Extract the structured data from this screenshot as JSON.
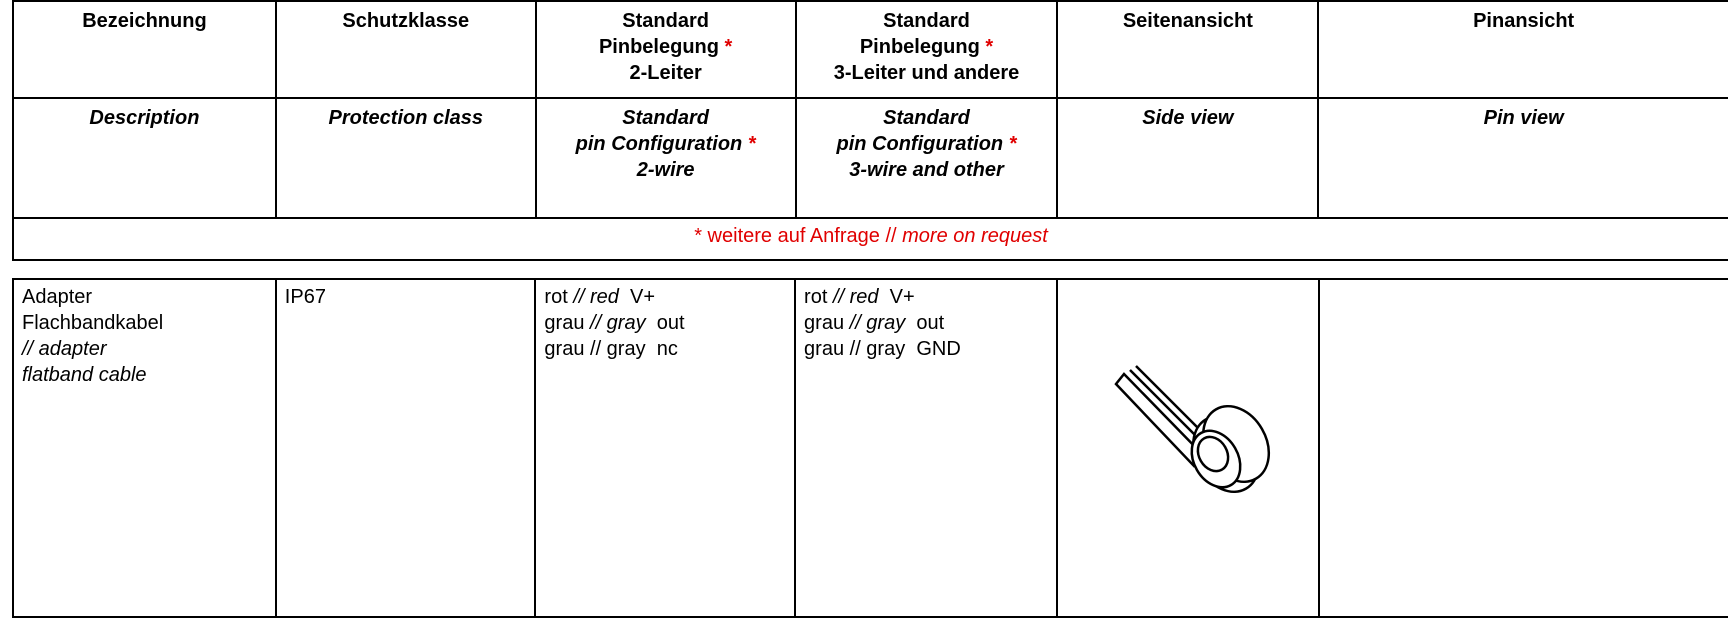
{
  "header_de": [
    [
      "Bezeichnung"
    ],
    [
      "Schutzklasse"
    ],
    [
      "Standard",
      "Pinbelegung",
      "2-Leiter"
    ],
    [
      "Standard",
      "Pinbelegung",
      "3-Leiter und andere"
    ],
    [
      "Seitenansicht"
    ],
    [
      "Pinansicht"
    ]
  ],
  "header_en": [
    [
      "Description"
    ],
    [
      "Protection class"
    ],
    [
      "Standard",
      "pin Configuration",
      "2-wire"
    ],
    [
      "Standard",
      "pin Configuration",
      "3-wire and other"
    ],
    [
      "Side view"
    ],
    [
      "Pin view"
    ]
  ],
  "asterisk": "*",
  "note": {
    "de": "* weitere auf Anfrage //",
    "en": "more on request"
  },
  "row": {
    "description_de": [
      "Adapter",
      "Flachbandkabel"
    ],
    "description_en": [
      "// adapter",
      "flatband cable"
    ],
    "protection": "IP67",
    "pins_2wire": [
      {
        "color": "rot",
        "translation": "// red",
        "signal": "V+",
        "italic": true
      },
      {
        "color": "grau",
        "translation": "// gray",
        "signal": "out",
        "italic": true
      },
      {
        "color": "grau",
        "translation": "// gray",
        "signal": "nc",
        "italic": false
      }
    ],
    "pins_3wire": [
      {
        "color": "rot",
        "translation": "// red",
        "signal": "V+",
        "italic": true
      },
      {
        "color": "grau",
        "translation": "// gray",
        "signal": "out",
        "italic": true
      },
      {
        "color": "grau",
        "translation": "// gray",
        "signal": "GND",
        "italic": false
      }
    ]
  }
}
